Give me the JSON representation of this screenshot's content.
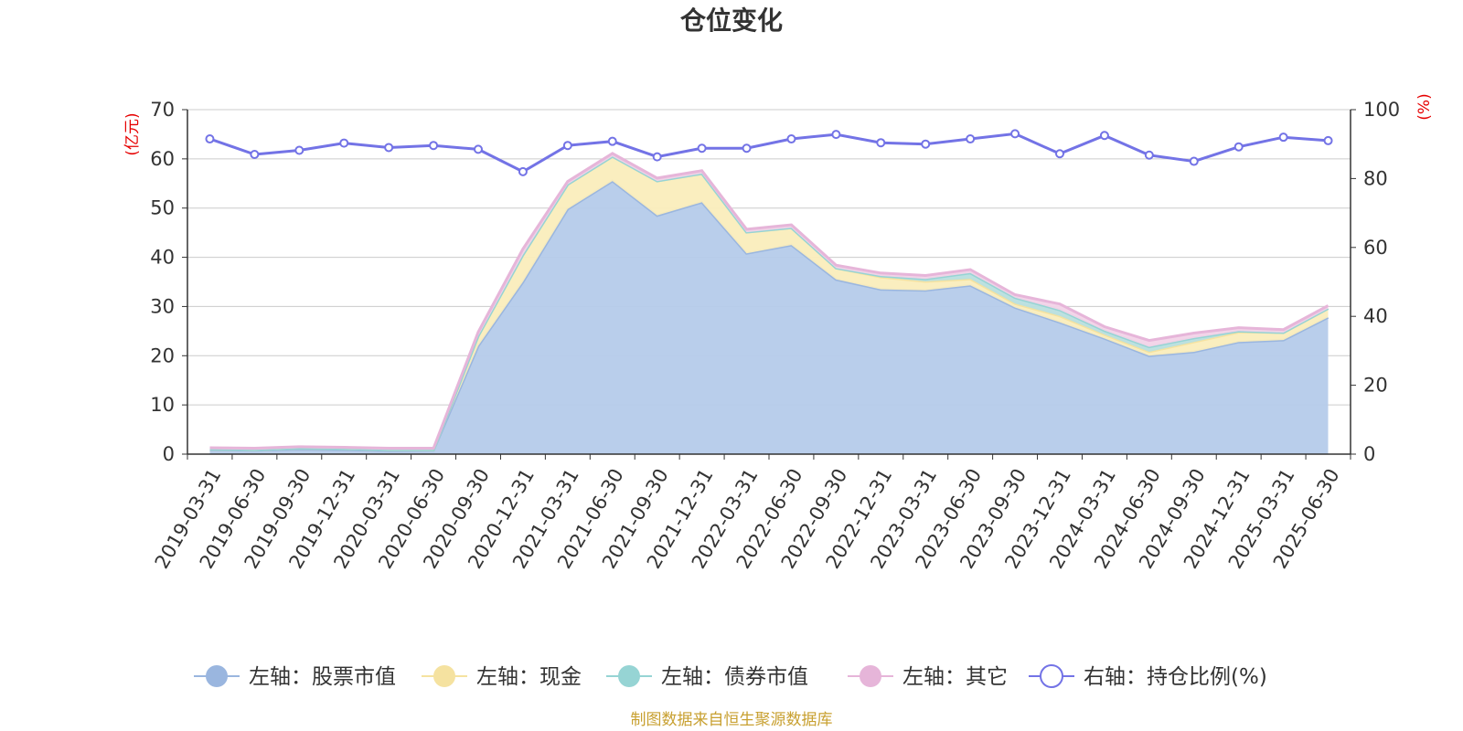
{
  "title": "仓位变化",
  "source": "制图数据来自恒生聚源数据库",
  "colors": {
    "stock_fill": "#b5cbea",
    "stock_line": "#9ab6df",
    "cash_fill": "#faedbc",
    "cash_line": "#f5e2a0",
    "bond_fill": "#b8dfdf",
    "bond_line": "#96d4d4",
    "other_fill": "#f2d3e8",
    "other_line": "#e6b5d9",
    "ratio_line": "#7373e6",
    "unit_text": "#e60000",
    "grid": "#cccccc",
    "axis": "#333333"
  },
  "chart_data": {
    "type": "area",
    "title": "仓位变化",
    "categories": [
      "2019-03-31",
      "2019-06-30",
      "2019-09-30",
      "2019-12-31",
      "2020-03-31",
      "2020-06-30",
      "2020-09-30",
      "2020-12-31",
      "2021-03-31",
      "2021-06-30",
      "2021-09-30",
      "2021-12-31",
      "2022-03-31",
      "2022-06-30",
      "2022-09-30",
      "2022-12-31",
      "2023-03-31",
      "2023-06-30",
      "2023-09-30",
      "2023-12-31",
      "2024-03-31",
      "2024-06-30",
      "2024-09-30",
      "2024-12-31",
      "2025-03-31",
      "2025-06-30"
    ],
    "left_axis": {
      "label": "(亿元)",
      "ylim": [
        0,
        70
      ],
      "ticks": [
        0,
        10,
        20,
        30,
        40,
        50,
        60,
        70
      ]
    },
    "right_axis": {
      "label": "(%)",
      "ylim": [
        0,
        100
      ],
      "ticks": [
        0,
        20,
        40,
        60,
        80,
        100
      ]
    },
    "series": [
      {
        "name": "左轴：股票市值",
        "axis": "left",
        "stacked": true,
        "color_key": "stock",
        "values": [
          0.9,
          0.8,
          1.0,
          0.9,
          0.7,
          0.8,
          22.0,
          35.0,
          49.8,
          55.5,
          48.5,
          51.2,
          40.8,
          42.5,
          35.5,
          33.5,
          33.3,
          34.3,
          29.8,
          26.8,
          23.5,
          20.0,
          20.8,
          22.8,
          23.2,
          27.8
        ]
      },
      {
        "name": "左轴：现金",
        "axis": "left",
        "stacked": true,
        "color_key": "cash",
        "values": [
          0.1,
          0.1,
          0.2,
          0.2,
          0.2,
          0.1,
          2.0,
          5.5,
          5.0,
          5.0,
          7.0,
          5.8,
          4.3,
          3.5,
          2.3,
          2.5,
          1.8,
          1.3,
          0.8,
          1.3,
          0.8,
          0.8,
          2.0,
          2.0,
          1.5,
          1.8
        ]
      },
      {
        "name": "左轴：债券市值",
        "axis": "left",
        "stacked": true,
        "color_key": "bond",
        "values": [
          0.0,
          0.0,
          0.0,
          0.0,
          0.0,
          0.0,
          0.0,
          0.0,
          0.0,
          0.0,
          0.0,
          0.0,
          0.0,
          0.0,
          0.0,
          0.2,
          0.5,
          1.2,
          1.2,
          1.2,
          0.8,
          1.0,
          0.8,
          0.2,
          0.0,
          0.0
        ]
      },
      {
        "name": "左轴：其它",
        "axis": "left",
        "stacked": true,
        "color_key": "other",
        "values": [
          0.3,
          0.3,
          0.3,
          0.3,
          0.3,
          0.3,
          0.8,
          1.2,
          0.6,
          0.6,
          0.6,
          0.6,
          0.6,
          0.6,
          0.6,
          0.6,
          0.7,
          0.7,
          0.6,
          1.2,
          0.8,
          1.3,
          1.0,
          0.7,
          0.6,
          0.6
        ]
      },
      {
        "name": "右轴：持仓比例(%)",
        "axis": "right",
        "type": "line",
        "color_key": "ratio",
        "values": [
          91.5,
          87.0,
          88.2,
          90.3,
          89.0,
          89.6,
          88.5,
          82.0,
          89.6,
          90.8,
          86.3,
          88.8,
          88.8,
          91.5,
          92.8,
          90.4,
          90.0,
          91.5,
          93.0,
          87.2,
          92.5,
          86.8,
          85.0,
          89.2,
          92.0,
          91.0
        ]
      }
    ],
    "grid": true,
    "legend_position": "bottom"
  }
}
